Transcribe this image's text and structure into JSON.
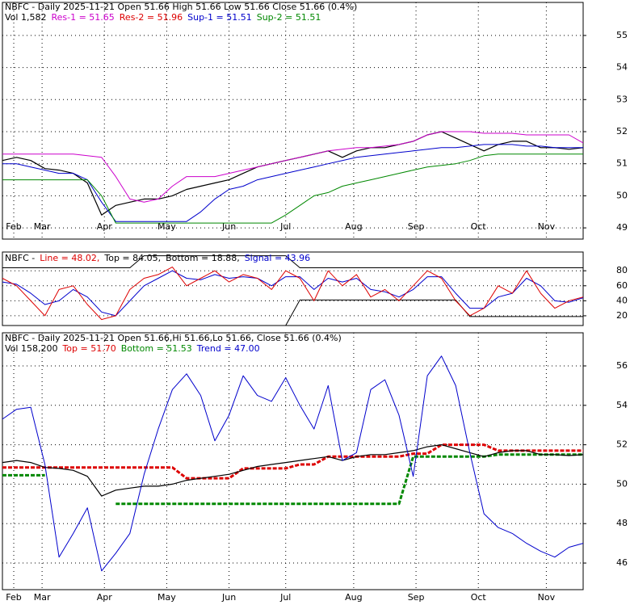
{
  "chart_data": [
    {
      "type": "line",
      "title": "NBFC - Daily 2025-11-21 Open 51.66  High 51.66  Low 51.66  Close 51.66 (0.4%)",
      "header_items": [
        {
          "text": "Vol 1,582",
          "color": "#000000"
        },
        {
          "text": "Res-1 = 51.65",
          "color": "#cc00cc"
        },
        {
          "text": "Res-2 = 51.96",
          "color": "#dd0000"
        },
        {
          "text": "Sup-1 = 51.51",
          "color": "#0000cc"
        },
        {
          "text": "Sup-2 = 51.51",
          "color": "#008800"
        }
      ],
      "x": [
        0,
        5,
        10,
        15,
        20,
        25,
        30,
        35,
        40,
        45,
        50,
        55,
        60,
        65,
        70,
        75,
        80,
        85,
        90,
        95,
        100,
        105,
        110,
        115,
        120,
        125,
        130,
        135,
        140,
        145,
        150,
        155,
        160,
        165,
        170,
        175,
        180,
        185,
        190,
        195,
        200,
        205
      ],
      "xlim": [
        0,
        205
      ],
      "xticks": [
        {
          "value": 4,
          "label": "Feb"
        },
        {
          "value": 14,
          "label": "Mar"
        },
        {
          "value": 36,
          "label": "Apr"
        },
        {
          "value": 58,
          "label": "May"
        },
        {
          "value": 80,
          "label": "Jun"
        },
        {
          "value": 100,
          "label": "Jul"
        },
        {
          "value": 124,
          "label": "Aug"
        },
        {
          "value": 146,
          "label": "Sep"
        },
        {
          "value": 168,
          "label": "Oct"
        },
        {
          "value": 192,
          "label": "Nov"
        }
      ],
      "ylim": [
        48.65,
        56.03
      ],
      "yticks": [
        49,
        50,
        51,
        52,
        53,
        54,
        55
      ],
      "grid": true,
      "series": [
        {
          "color": "#000000",
          "width": 1.2,
          "values": [
            51.1,
            51.2,
            51.1,
            50.85,
            50.8,
            50.7,
            50.4,
            49.4,
            49.7,
            49.8,
            49.9,
            49.9,
            50.0,
            50.2,
            50.3,
            50.4,
            50.5,
            50.7,
            50.9,
            51.0,
            51.1,
            51.2,
            51.3,
            51.4,
            51.2,
            51.4,
            51.5,
            51.5,
            51.6,
            51.7,
            51.9,
            52.0,
            51.8,
            51.6,
            51.4,
            51.6,
            51.7,
            51.7,
            51.5,
            51.5,
            51.45,
            51.5
          ]
        },
        {
          "color": "#cc00cc",
          "width": 1,
          "values": [
            51.3,
            51.3,
            51.3,
            51.3,
            51.3,
            51.3,
            51.25,
            51.2,
            50.6,
            49.9,
            49.8,
            49.9,
            50.3,
            50.6,
            50.6,
            50.6,
            50.7,
            50.8,
            50.9,
            51.0,
            51.1,
            51.2,
            51.3,
            51.4,
            51.45,
            51.5,
            51.5,
            51.55,
            51.6,
            51.7,
            51.9,
            52.0,
            52.0,
            52.0,
            51.95,
            51.95,
            51.95,
            51.9,
            51.9,
            51.9,
            51.9,
            51.65
          ]
        },
        {
          "color": "#0000cc",
          "width": 1,
          "values": [
            51.0,
            51.0,
            50.9,
            50.8,
            50.7,
            50.7,
            50.5,
            49.8,
            49.2,
            49.2,
            49.2,
            49.2,
            49.2,
            49.2,
            49.5,
            49.9,
            50.2,
            50.3,
            50.5,
            50.6,
            50.7,
            50.8,
            50.9,
            51.0,
            51.1,
            51.2,
            51.25,
            51.3,
            51.35,
            51.4,
            51.45,
            51.5,
            51.5,
            51.55,
            51.6,
            51.6,
            51.6,
            51.55,
            51.55,
            51.5,
            51.5,
            51.5
          ]
        },
        {
          "color": "#008800",
          "width": 1,
          "values": [
            50.5,
            50.5,
            50.5,
            50.5,
            50.5,
            50.5,
            50.5,
            50.0,
            49.15,
            49.15,
            49.15,
            49.15,
            49.15,
            49.15,
            49.15,
            49.15,
            49.15,
            49.15,
            49.15,
            49.15,
            49.4,
            49.7,
            50.0,
            50.1,
            50.3,
            50.4,
            50.5,
            50.6,
            50.7,
            50.8,
            50.9,
            50.95,
            51.0,
            51.1,
            51.25,
            51.3,
            51.3,
            51.3,
            51.3,
            51.3,
            51.3,
            51.3
          ]
        }
      ]
    },
    {
      "type": "line",
      "header_items": [
        {
          "text": "NBFC -",
          "color": "#000000"
        },
        {
          "text": "Line = 48.02,",
          "color": "#dd0000"
        },
        {
          "text": "Top = 84.05,",
          "color": "#000000"
        },
        {
          "text": "Bottom = 18.88,",
          "color": "#000000"
        },
        {
          "text": "Signal = 43.96",
          "color": "#0000cc"
        }
      ],
      "x": [
        0,
        5,
        10,
        15,
        20,
        25,
        30,
        35,
        40,
        45,
        50,
        55,
        60,
        65,
        70,
        75,
        80,
        85,
        90,
        95,
        100,
        105,
        110,
        115,
        120,
        125,
        130,
        135,
        140,
        145,
        150,
        155,
        160,
        165,
        170,
        175,
        180,
        185,
        190,
        195,
        200,
        205
      ],
      "xlim": [
        0,
        205
      ],
      "ylim": [
        7,
        105
      ],
      "yticks": [
        20,
        40,
        60,
        80
      ],
      "grid": true,
      "series": [
        {
          "color": "#000000",
          "width": 1,
          "values": [
            84,
            84,
            84,
            84,
            84,
            84,
            84,
            84,
            84,
            84,
            100,
            100,
            100,
            100,
            100,
            100,
            100,
            100,
            100,
            100,
            100,
            84,
            84,
            84,
            84,
            84,
            84,
            84,
            84,
            84,
            84,
            84,
            84,
            84,
            84,
            84,
            84,
            84,
            84,
            84,
            84,
            84
          ]
        },
        {
          "color": "#000000",
          "width": 1,
          "values": [
            7,
            7,
            7,
            7,
            7,
            7,
            7,
            7,
            7,
            7,
            7,
            7,
            7,
            7,
            7,
            7,
            7,
            7,
            7,
            7,
            7,
            41,
            41,
            41,
            41,
            41,
            41,
            41,
            41,
            41,
            41,
            41,
            41,
            19,
            19,
            19,
            19,
            19,
            19,
            19,
            19,
            19
          ]
        },
        {
          "color": "#0000cc",
          "width": 1,
          "values": [
            65,
            62,
            50,
            35,
            40,
            55,
            45,
            25,
            20,
            40,
            60,
            70,
            80,
            70,
            68,
            75,
            70,
            72,
            70,
            60,
            72,
            72,
            55,
            70,
            65,
            70,
            55,
            52,
            45,
            55,
            72,
            72,
            50,
            30,
            30,
            45,
            50,
            70,
            60,
            40,
            38,
            44
          ]
        },
        {
          "color": "#dd0000",
          "width": 1,
          "values": [
            70,
            60,
            40,
            20,
            55,
            60,
            35,
            15,
            20,
            55,
            70,
            75,
            85,
            60,
            70,
            80,
            65,
            75,
            70,
            55,
            80,
            70,
            40,
            80,
            60,
            75,
            45,
            55,
            40,
            60,
            80,
            70,
            40,
            20,
            30,
            60,
            50,
            80,
            50,
            30,
            40,
            45
          ]
        }
      ]
    },
    {
      "type": "line",
      "title": "NBFC - Daily 2025-11-21 Open 51.66,Hi 51.66,Lo 51.66, Close 51.66 (0.4%)",
      "header_items": [
        {
          "text": "Vol 158,200",
          "color": "#000000"
        },
        {
          "text": "Top = 51.70",
          "color": "#dd0000"
        },
        {
          "text": "Bottom = 51.53",
          "color": "#008800"
        },
        {
          "text": "Trend = 47.00",
          "color": "#0000cc"
        }
      ],
      "x": [
        0,
        5,
        10,
        15,
        20,
        25,
        30,
        35,
        40,
        45,
        50,
        55,
        60,
        65,
        70,
        75,
        80,
        85,
        90,
        95,
        100,
        105,
        110,
        115,
        120,
        125,
        130,
        135,
        140,
        145,
        150,
        155,
        160,
        165,
        170,
        175,
        180,
        185,
        190,
        195,
        200,
        205
      ],
      "xlim": [
        0,
        205
      ],
      "xticks": [
        {
          "value": 4,
          "label": "Feb"
        },
        {
          "value": 14,
          "label": "Mar"
        },
        {
          "value": 36,
          "label": "Apr"
        },
        {
          "value": 58,
          "label": "May"
        },
        {
          "value": 80,
          "label": "Jun"
        },
        {
          "value": 100,
          "label": "Jul"
        },
        {
          "value": 124,
          "label": "Aug"
        },
        {
          "value": 146,
          "label": "Sep"
        },
        {
          "value": 168,
          "label": "Oct"
        },
        {
          "value": 192,
          "label": "Nov"
        }
      ],
      "ylim": [
        44.65,
        57.68
      ],
      "yticks": [
        46,
        48,
        50,
        52,
        54,
        56
      ],
      "grid": true,
      "series": [
        {
          "color": "#dd0000",
          "width": 3,
          "dash": true,
          "values": [
            50.85,
            50.85,
            50.85,
            50.85,
            50.85,
            50.85,
            50.85,
            50.85,
            50.85,
            50.85,
            50.85,
            50.85,
            50.85,
            50.3,
            50.3,
            50.3,
            50.3,
            50.8,
            50.8,
            50.8,
            50.8,
            51.0,
            51.0,
            51.4,
            51.4,
            51.4,
            51.4,
            51.4,
            51.4,
            51.55,
            51.55,
            52.0,
            52.0,
            52.0,
            52.0,
            51.7,
            51.7,
            51.7,
            51.7,
            51.7,
            51.7,
            51.7
          ]
        },
        {
          "color": "#008800",
          "width": 3,
          "dash": true,
          "values": [
            50.45,
            50.45,
            50.45,
            50.45,
            null,
            null,
            null,
            null,
            49.0,
            49.0,
            49.0,
            49.0,
            49.0,
            49.0,
            49.0,
            49.0,
            49.0,
            49.0,
            49.0,
            49.0,
            49.0,
            49.0,
            49.0,
            49.0,
            49.0,
            49.0,
            49.0,
            49.0,
            49.0,
            51.4,
            51.4,
            51.4,
            51.4,
            51.4,
            51.4,
            51.5,
            51.5,
            51.5,
            51.5,
            51.5,
            51.5,
            51.5
          ]
        },
        {
          "color": "#000000",
          "width": 1.2,
          "values": [
            51.1,
            51.2,
            51.1,
            50.85,
            50.8,
            50.7,
            50.4,
            49.4,
            49.7,
            49.8,
            49.9,
            49.9,
            50.0,
            50.2,
            50.3,
            50.4,
            50.5,
            50.7,
            50.9,
            51.0,
            51.1,
            51.2,
            51.3,
            51.4,
            51.2,
            51.4,
            51.5,
            51.5,
            51.6,
            51.7,
            51.9,
            52.0,
            51.8,
            51.6,
            51.4,
            51.6,
            51.7,
            51.7,
            51.5,
            51.5,
            51.45,
            51.5
          ]
        },
        {
          "color": "#0000cc",
          "width": 1,
          "values": [
            53.3,
            53.8,
            53.9,
            51.0,
            46.3,
            47.5,
            48.8,
            45.6,
            46.5,
            47.5,
            50.5,
            52.8,
            54.8,
            55.6,
            54.5,
            52.2,
            53.5,
            55.5,
            54.5,
            54.2,
            55.4,
            54.0,
            52.8,
            55.0,
            51.2,
            51.6,
            54.8,
            55.3,
            53.5,
            50.4,
            55.5,
            56.5,
            55.0,
            51.6,
            48.5,
            47.8,
            47.5,
            47.0,
            46.6,
            46.3,
            46.8,
            47.0
          ]
        }
      ]
    }
  ]
}
